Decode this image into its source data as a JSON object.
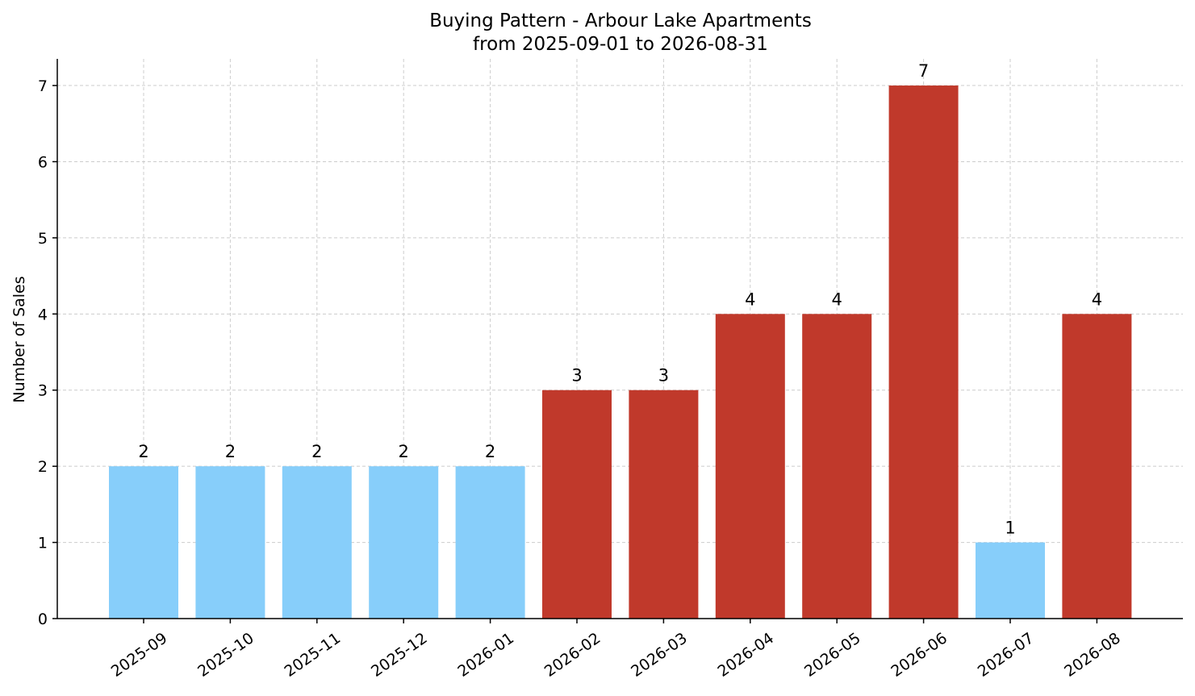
{
  "chart_data": {
    "type": "bar",
    "title": "Buying Pattern - Arbour Lake Apartments",
    "subtitle": "from 2025-09-01 to 2026-08-31",
    "xlabel": "",
    "ylabel": "Number of Sales",
    "ylim": [
      0,
      7.35
    ],
    "yticks": [
      0,
      1,
      2,
      3,
      4,
      5,
      6,
      7
    ],
    "grid": true,
    "legend": "none",
    "categories": [
      "2025-09",
      "2025-10",
      "2025-11",
      "2025-12",
      "2026-01",
      "2026-02",
      "2026-03",
      "2026-04",
      "2026-05",
      "2026-06",
      "2026-07",
      "2026-08"
    ],
    "values": [
      2,
      2,
      2,
      2,
      2,
      3,
      3,
      4,
      4,
      7,
      1,
      4
    ],
    "data_labels": [
      "2",
      "2",
      "2",
      "2",
      "2",
      "3",
      "3",
      "4",
      "4",
      "7",
      "1",
      "4"
    ],
    "bar_colors": [
      "#87cefa",
      "#87cefa",
      "#87cefa",
      "#87cefa",
      "#87cefa",
      "#c0392b",
      "#c0392b",
      "#c0392b",
      "#c0392b",
      "#c0392b",
      "#87cefa",
      "#c0392b"
    ],
    "colors": {
      "low": "#87cefa",
      "high": "#c0392b"
    }
  }
}
